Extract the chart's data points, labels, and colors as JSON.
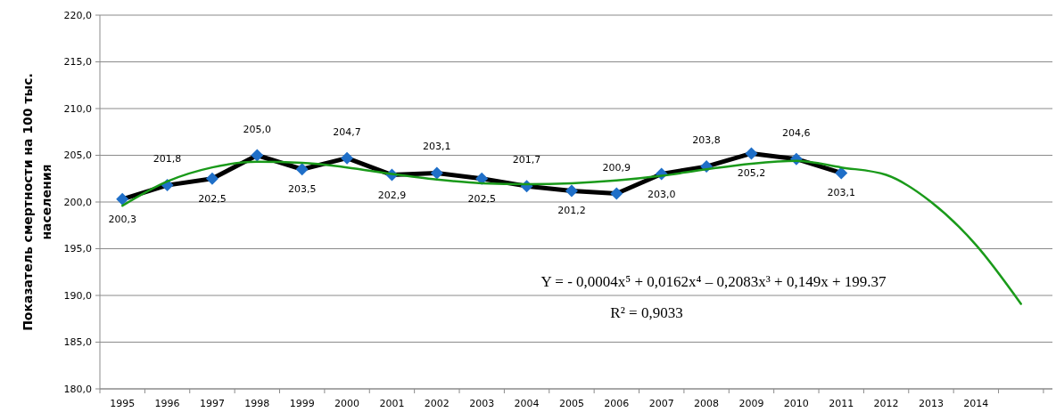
{
  "chart_data": {
    "type": "line",
    "ylabel": "Показатель смертности на 100 тыс. населения",
    "categories": [
      "1995",
      "1996",
      "1997",
      "1998",
      "1999",
      "2000",
      "2001",
      "2002",
      "2003",
      "2004",
      "2005",
      "2006",
      "2007",
      "2008",
      "2009",
      "2010",
      "2011",
      "2012",
      "2013",
      "2014",
      null
    ],
    "ylim": [
      180,
      220
    ],
    "yticks": [
      {
        "value": 180,
        "label": "180,0"
      },
      {
        "value": 185,
        "label": "185,0"
      },
      {
        "value": 190,
        "label": "190,0"
      },
      {
        "value": 195,
        "label": "195,0"
      },
      {
        "value": 200,
        "label": "200,0"
      },
      {
        "value": 205,
        "label": "205,0"
      },
      {
        "value": 210,
        "label": "210,0"
      },
      {
        "value": 215,
        "label": "215,0"
      },
      {
        "value": 220,
        "label": "220,0"
      }
    ],
    "grid": "y",
    "series": [
      {
        "color": "#000000",
        "colors": [
          "#1f6fc8",
          "#1f6fc8",
          "#1f6fc8",
          "#1f6fc8",
          "#1f6fc8",
          "#1f6fc8",
          "#1f6fc8",
          "#1f6fc8",
          "#1f6fc8",
          "#1f6fc8",
          "#1f6fc8",
          "#1f6fc8",
          "#1f6fc8",
          "#1f6fc8",
          "#1f6fc8",
          "#1f6fc8",
          "#1f6fc8",
          null,
          null,
          null,
          null
        ],
        "marker": "diamond",
        "values": [
          200.3,
          201.8,
          202.5,
          205.0,
          203.5,
          204.7,
          202.9,
          203.1,
          202.5,
          201.7,
          201.2,
          200.9,
          203.0,
          203.8,
          205.2,
          204.6,
          203.1,
          null,
          null,
          null,
          null
        ],
        "value_labels": [
          "200,3",
          "201,8",
          "202,5",
          "205,0",
          "203,5",
          "204,7",
          "202,9",
          "203,1",
          "202,5",
          "201,7",
          "201,2",
          "200,9",
          "203,0",
          "203,8",
          "205,2",
          "204,6",
          "203,1",
          null,
          null,
          null,
          null
        ]
      },
      {
        "color": "#1a9a1a",
        "marker": "none",
        "values": [
          199.6,
          202.2,
          203.7,
          204.3,
          204.2,
          203.7,
          203.0,
          202.4,
          202.0,
          201.9,
          202.0,
          202.3,
          202.8,
          203.5,
          204.1,
          204.4,
          203.7,
          202.9,
          200.0,
          195.4,
          189.1
        ]
      }
    ],
    "annotations": [
      "Y = - 0,0004x⁵ + 0,0162x⁴ – 0,2083x³ + 0,149x + 199.37",
      "R² = 0,9033"
    ]
  }
}
